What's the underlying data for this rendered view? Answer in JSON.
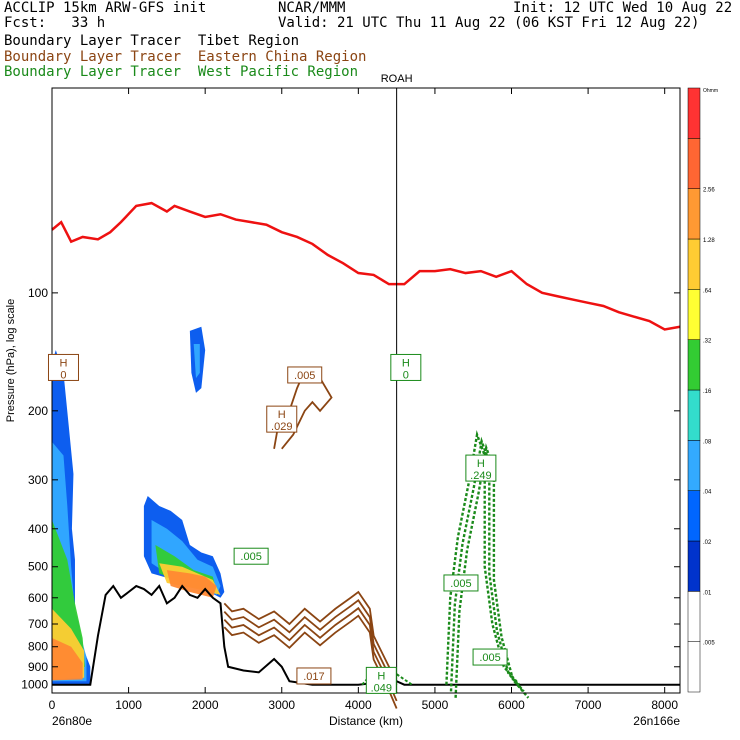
{
  "header": {
    "model": "ACCLIP 15km ARW-GFS init",
    "org": "NCAR/MMM",
    "init": "Init: 12 UTC Wed 10 Aug 22",
    "fcst": "Fcst:   33 h",
    "valid": "Valid: 21 UTC Thu 11 Aug 22 (06 KST Fri 12 Aug 22)",
    "lines": [
      {
        "text": "Boundary Layer Tracer  Tibet Region",
        "color": "#000000"
      },
      {
        "text": "Boundary Layer Tracer  Eastern China Region",
        "color": "#8B4513"
      },
      {
        "text": "Boundary Layer Tracer  West Pacific Region",
        "color": "#1a8a1a"
      }
    ]
  },
  "chart_data": {
    "type": "cross-section",
    "xlabel": "Distance (km)",
    "ylabel": "Pressure (hPa), log scale",
    "x_ticks": [
      0,
      1000,
      2000,
      3000,
      4000,
      5000,
      6000,
      7000,
      8000
    ],
    "xlim": [
      0,
      8200
    ],
    "y_ticks": [
      100,
      200,
      300,
      400,
      500,
      600,
      700,
      800,
      900,
      1000
    ],
    "ylim": [
      1050,
      30
    ],
    "y_scale": "log",
    "left_end": "26n80e",
    "right_end": "26n166e",
    "station": {
      "name": "ROAH",
      "x": 4500
    },
    "colorbar": {
      "labels": [
        "",
        ".005",
        ".01",
        ".02",
        ".04",
        ".08",
        ".16",
        ".32",
        ".64",
        "1.28",
        "2.56",
        ""
      ],
      "colors": [
        "#ffffff",
        "#ffffff",
        "#0033cc",
        "#0066ff",
        "#33aaff",
        "#33ddcc",
        "#33cc33",
        "#ffff33",
        "#ffcc33",
        "#ff9933",
        "#ff6633",
        "#ff3333"
      ],
      "top_label": "Ohmm"
    },
    "tropopause": [
      [
        0,
        69
      ],
      [
        120,
        66
      ],
      [
        250,
        74
      ],
      [
        400,
        72
      ],
      [
        600,
        73
      ],
      [
        760,
        70
      ],
      [
        900,
        66
      ],
      [
        1100,
        60
      ],
      [
        1300,
        59
      ],
      [
        1500,
        62
      ],
      [
        1600,
        60
      ],
      [
        1800,
        62
      ],
      [
        2000,
        64
      ],
      [
        2200,
        63
      ],
      [
        2400,
        65
      ],
      [
        2600,
        66
      ],
      [
        2800,
        67
      ],
      [
        3000,
        70
      ],
      [
        3200,
        72
      ],
      [
        3400,
        75
      ],
      [
        3600,
        80
      ],
      [
        3800,
        84
      ],
      [
        4000,
        89
      ],
      [
        4200,
        90
      ],
      [
        4400,
        95
      ],
      [
        4600,
        95
      ],
      [
        4800,
        88
      ],
      [
        5000,
        88
      ],
      [
        5200,
        87
      ],
      [
        5400,
        89
      ],
      [
        5600,
        88
      ],
      [
        5800,
        91
      ],
      [
        6000,
        88
      ],
      [
        6200,
        95
      ],
      [
        6400,
        100
      ],
      [
        6600,
        102
      ],
      [
        6800,
        104
      ],
      [
        7000,
        106
      ],
      [
        7200,
        108
      ],
      [
        7400,
        112
      ],
      [
        7600,
        115
      ],
      [
        7800,
        118
      ],
      [
        8000,
        124
      ],
      [
        8200,
        122
      ]
    ],
    "terrain": [
      [
        0,
        1000
      ],
      [
        500,
        1000
      ],
      [
        600,
        750
      ],
      [
        700,
        590
      ],
      [
        800,
        560
      ],
      [
        900,
        600
      ],
      [
        1000,
        580
      ],
      [
        1100,
        560
      ],
      [
        1200,
        570
      ],
      [
        1300,
        590
      ],
      [
        1400,
        560
      ],
      [
        1500,
        620
      ],
      [
        1600,
        600
      ],
      [
        1700,
        560
      ],
      [
        1800,
        590
      ],
      [
        1900,
        600
      ],
      [
        2000,
        570
      ],
      [
        2100,
        600
      ],
      [
        2200,
        620
      ],
      [
        2250,
        800
      ],
      [
        2300,
        900
      ],
      [
        2500,
        920
      ],
      [
        2700,
        930
      ],
      [
        2900,
        860
      ],
      [
        3000,
        900
      ],
      [
        3100,
        980
      ],
      [
        3400,
        1000
      ],
      [
        3800,
        1000
      ],
      [
        4000,
        1000
      ],
      [
        4200,
        990
      ],
      [
        4500,
        980
      ],
      [
        4600,
        1000
      ],
      [
        5000,
        1000
      ],
      [
        6000,
        1000
      ],
      [
        8200,
        1000
      ]
    ],
    "labels": [
      {
        "text": "H",
        "sub": "0",
        "x": 150,
        "p": 155,
        "color": "#8B4513"
      },
      {
        "text": "",
        "sub": ".005",
        "x": 3300,
        "p": 162,
        "color": "#8B4513"
      },
      {
        "text": "H",
        "sub": ".029",
        "x": 3000,
        "p": 210,
        "color": "#8B4513"
      },
      {
        "text": "H",
        "sub": "0",
        "x": 4620,
        "p": 155,
        "color": "#1a8a1a"
      },
      {
        "text": "H",
        "sub": ".249",
        "x": 5600,
        "p": 280,
        "color": "#1a8a1a"
      },
      {
        "text": "",
        "sub": ".005",
        "x": 2600,
        "p": 470,
        "color": "#1a8a1a"
      },
      {
        "text": "",
        "sub": ".005",
        "x": 5340,
        "p": 550,
        "color": "#1a8a1a"
      },
      {
        "text": "",
        "sub": ".005",
        "x": 5720,
        "p": 850,
        "color": "#1a8a1a"
      },
      {
        "text": "",
        "sub": ".017",
        "x": 3420,
        "p": 950,
        "color": "#8B4513"
      },
      {
        "text": "H",
        "sub": ".049",
        "x": 4300,
        "p": 975,
        "color": "#1a8a1a"
      }
    ]
  }
}
